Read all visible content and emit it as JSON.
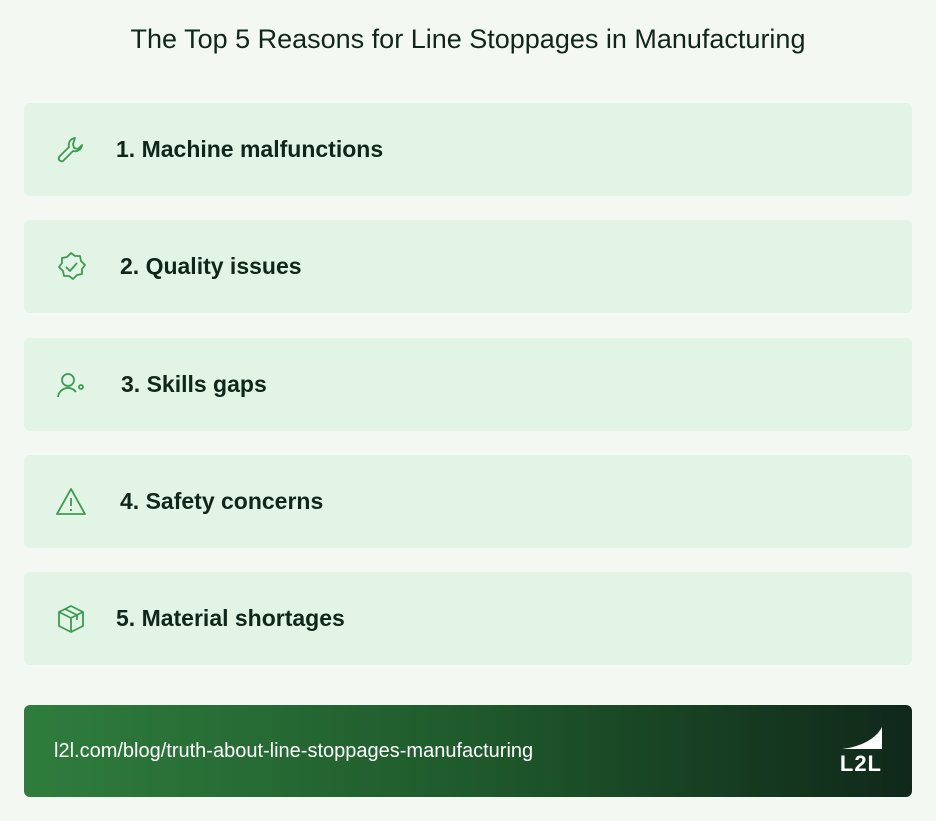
{
  "header": {
    "title": "The Top 5 Reasons for Line Stoppages in Manufacturing"
  },
  "items": [
    {
      "label": "1. Machine malfunctions"
    },
    {
      "label": "2. Quality issues"
    },
    {
      "label": "3. Skills gaps"
    },
    {
      "label": "4. Safety concerns"
    },
    {
      "label": "5. Material shortages"
    }
  ],
  "footer": {
    "url": "l2l.com/blog/truth-about-line-stoppages-manufacturing",
    "logo": "L2L"
  }
}
